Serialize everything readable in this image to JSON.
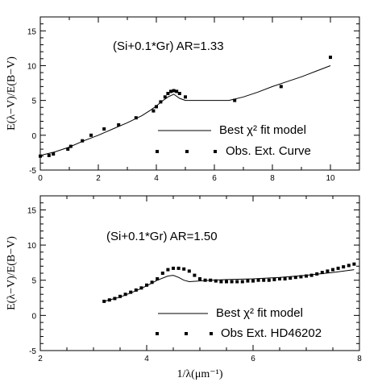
{
  "chart_data": [
    {
      "type": "scatter",
      "panel": "top",
      "annotation": "(Si+0.1*Gr)  AR=1.33",
      "xlim": [
        0,
        11
      ],
      "ylim": [
        -5,
        17
      ],
      "x_ticks": [
        "0",
        "2",
        "4",
        "6",
        "8",
        "10"
      ],
      "y_ticks": [
        "-5",
        "0",
        "5",
        "10",
        "15"
      ],
      "ylabel": "E(λ−V)/E(B−V)",
      "xlabel": "",
      "legend": {
        "placement": "bottom-right",
        "line_label": "Best χ² fit model",
        "marker_label": "Obs. Ext. Curve"
      },
      "series": [
        {
          "name": "Obs. Ext. Curve",
          "style": "square-markers",
          "x": [
            0.0,
            0.3,
            0.45,
            0.95,
            1.05,
            1.45,
            1.75,
            2.2,
            2.7,
            3.3,
            3.9,
            4.0,
            4.15,
            4.3,
            4.4,
            4.5,
            4.6,
            4.7,
            4.8,
            5.0,
            6.7,
            8.3,
            10.0
          ],
          "y": [
            -3.0,
            -2.9,
            -2.7,
            -2.0,
            -1.6,
            -0.8,
            0.0,
            0.9,
            1.5,
            2.5,
            3.5,
            4.1,
            4.8,
            5.5,
            6.0,
            6.3,
            6.4,
            6.3,
            6.0,
            5.5,
            5.0,
            7.0,
            11.2
          ]
        },
        {
          "name": "Best χ² fit model",
          "style": "line",
          "x": [
            0.0,
            0.5,
            1.0,
            1.5,
            2.0,
            2.5,
            3.0,
            3.5,
            3.8,
            4.0,
            4.2,
            4.4,
            4.6,
            4.8,
            5.0,
            5.5,
            6.0,
            6.5,
            7.0,
            7.5,
            8.0,
            8.5,
            9.0,
            9.5,
            10.0
          ],
          "y": [
            -2.9,
            -2.4,
            -1.7,
            -0.8,
            0.0,
            0.9,
            1.8,
            2.8,
            3.6,
            4.2,
            4.9,
            5.5,
            5.9,
            5.3,
            5.0,
            5.0,
            5.0,
            5.0,
            5.5,
            6.2,
            7.0,
            7.7,
            8.4,
            9.2,
            10.0
          ]
        }
      ]
    },
    {
      "type": "scatter",
      "panel": "bottom",
      "annotation": "(Si+0.1*Gr)  AR=1.50",
      "xlim": [
        2,
        8
      ],
      "ylim": [
        -5,
        17
      ],
      "x_ticks": [
        "2",
        "4",
        "6",
        "8"
      ],
      "y_ticks": [
        "-5",
        "0",
        "5",
        "10",
        "15"
      ],
      "ylabel": "E(λ−V)/E(B−V)",
      "xlabel": "1/λ(μm⁻¹)",
      "legend": {
        "placement": "bottom-right",
        "line_label": "Best χ² fit model",
        "marker_label": "Obs Ext. HD46202"
      },
      "series": [
        {
          "name": "Obs Ext. HD46202",
          "style": "square-markers",
          "x": [
            3.2,
            3.3,
            3.4,
            3.5,
            3.6,
            3.7,
            3.8,
            3.9,
            4.0,
            4.1,
            4.2,
            4.3,
            4.4,
            4.5,
            4.6,
            4.7,
            4.8,
            4.9,
            5.0,
            5.1,
            5.2,
            5.3,
            5.4,
            5.5,
            5.6,
            5.7,
            5.8,
            5.9,
            6.0,
            6.1,
            6.2,
            6.3,
            6.4,
            6.5,
            6.6,
            6.7,
            6.8,
            6.9,
            7.0,
            7.1,
            7.2,
            7.3,
            7.4,
            7.5,
            7.6,
            7.7,
            7.8,
            7.9
          ],
          "y": [
            2.0,
            2.2,
            2.4,
            2.7,
            3.0,
            3.3,
            3.6,
            3.9,
            4.3,
            4.7,
            5.2,
            6.0,
            6.5,
            6.7,
            6.7,
            6.6,
            6.3,
            5.7,
            5.2,
            5.0,
            5.0,
            4.9,
            4.8,
            4.8,
            4.8,
            4.8,
            4.8,
            4.9,
            4.9,
            5.0,
            5.0,
            5.0,
            5.1,
            5.2,
            5.2,
            5.3,
            5.4,
            5.5,
            5.6,
            5.7,
            5.9,
            6.1,
            6.3,
            6.5,
            6.7,
            6.9,
            7.1,
            7.3
          ]
        },
        {
          "name": "Best χ² fit model",
          "style": "line",
          "x": [
            3.2,
            3.5,
            3.8,
            4.0,
            4.2,
            4.4,
            4.5,
            4.6,
            4.7,
            4.8,
            5.0,
            5.2,
            5.5,
            6.0,
            6.5,
            7.0,
            7.5,
            7.9
          ],
          "y": [
            2.0,
            2.6,
            3.5,
            4.2,
            5.0,
            5.6,
            5.7,
            5.4,
            5.0,
            4.8,
            4.9,
            5.0,
            5.1,
            5.2,
            5.4,
            5.7,
            6.1,
            6.5
          ]
        }
      ]
    }
  ]
}
